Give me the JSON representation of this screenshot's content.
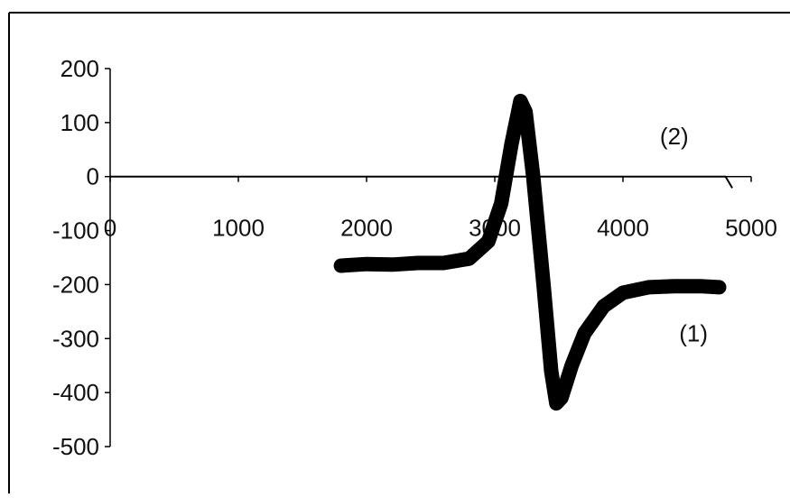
{
  "chart_data": {
    "type": "line",
    "title": "",
    "xlabel": "",
    "ylabel": "",
    "xlim": [
      0,
      5000
    ],
    "ylim": [
      -500,
      200
    ],
    "x_ticks": [
      "0",
      "1000",
      "2000",
      "3000",
      "4000",
      "5000"
    ],
    "y_ticks": [
      "200",
      "100",
      "0",
      "-100",
      "-200",
      "-300",
      "-400",
      "-500"
    ],
    "grid": false,
    "legend": "none",
    "series": [
      {
        "name": "(1)",
        "color": "#000000",
        "x": [
          1800,
          2000,
          2200,
          2400,
          2600,
          2800,
          2950,
          3050,
          3130,
          3200,
          3240,
          3300,
          3380,
          3440,
          3480,
          3520,
          3600,
          3700,
          3850,
          4000,
          4200,
          4400,
          4600,
          4750
        ],
        "y": [
          -165,
          -162,
          -163,
          -160,
          -160,
          -152,
          -120,
          -50,
          60,
          140,
          120,
          0,
          -200,
          -360,
          -420,
          -410,
          -350,
          -290,
          -240,
          -215,
          -205,
          -203,
          -203,
          -205
        ]
      },
      {
        "name": "(2)",
        "color": "#000000",
        "x": [
          0,
          1700,
          2000,
          2600,
          2900,
          3100,
          3500,
          4000,
          4400,
          4700,
          4800,
          4850
        ],
        "y": [
          0,
          0,
          0,
          0,
          0,
          0,
          0,
          0,
          0,
          0,
          0,
          -20
        ]
      }
    ],
    "annotations": [
      {
        "text": "(2)",
        "x": 4400,
        "y": 60
      },
      {
        "text": "(1)",
        "x": 4550,
        "y": -305
      }
    ]
  }
}
